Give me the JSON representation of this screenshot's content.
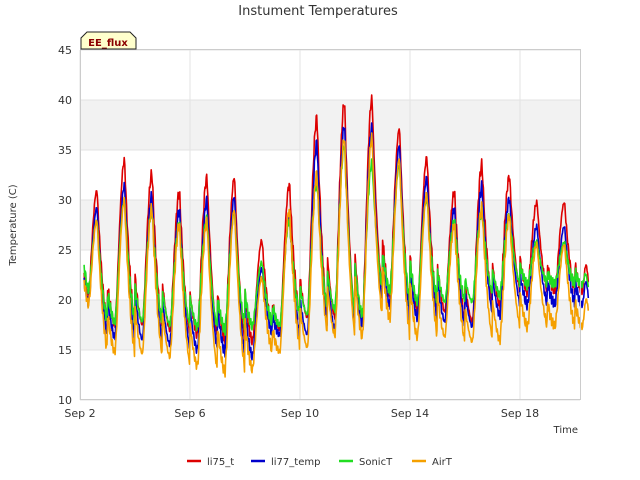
{
  "chart_data": {
    "type": "line",
    "title": "Instument Temperatures",
    "badge": "EE_flux",
    "xlabel": "Time",
    "ylabel": "Temperature (C)",
    "ylim": [
      10,
      45
    ],
    "xlim": [
      "2023-09-02",
      "2023-09-20"
    ],
    "yticks": [
      "10",
      "15",
      "20",
      "25",
      "30",
      "35",
      "40",
      "45"
    ],
    "xticks": [
      {
        "label": "Sep 2",
        "date": "2023-09-02"
      },
      {
        "label": "Sep 6",
        "date": "2023-09-06"
      },
      {
        "label": "Sep 10",
        "date": "2023-09-10"
      },
      {
        "label": "Sep 14",
        "date": "2023-09-14"
      },
      {
        "label": "Sep 18",
        "date": "2023-09-18"
      }
    ],
    "grid": true,
    "background_bands": "alternating light grey",
    "legend_position": "bottom",
    "series": [
      {
        "name": "li75_t",
        "color": "#dd0000",
        "start": "2023-09-02",
        "daily_max": [
          31,
          34,
          32.7,
          30.8,
          32.3,
          32.3,
          26,
          31.6,
          38.3,
          39.8,
          40.2,
          37.2,
          34.3,
          30.8,
          33.6,
          32.4,
          29.8
        ],
        "daily_min": [
          18.5,
          17.5,
          17.5,
          17.0,
          16.5,
          16.0,
          15.8,
          17.0,
          18.2,
          18.3,
          18.0,
          20.5,
          19.0,
          18.8,
          17.8,
          19.5,
          20.8
        ],
        "start_value": 22.5,
        "end_value": 21.0
      },
      {
        "name": "li77_temp",
        "color": "#0000cc",
        "start": "2023-09-02",
        "daily_max": [
          29.3,
          31.5,
          30.5,
          29.0,
          30.1,
          30.4,
          23.2,
          28.5,
          35.8,
          37.5,
          37.4,
          35.5,
          32.3,
          29.1,
          31.4,
          30.2,
          27.4
        ],
        "daily_min": [
          17.5,
          16.3,
          16.0,
          15.5,
          15.0,
          14.8,
          14.3,
          16.5,
          16.5,
          17.0,
          17.5,
          19.5,
          18.2,
          17.8,
          17.3,
          18.5,
          19.5
        ],
        "start_value": 22.0,
        "end_value": 19.5
      },
      {
        "name": "SonicT",
        "color": "#22dd22",
        "start": "2023-09-02",
        "daily_max": [
          28.0,
          30.0,
          29.0,
          27.6,
          28.2,
          28.7,
          23.8,
          28.0,
          32.0,
          35.5,
          33.8,
          33.5,
          30.3,
          27.8,
          29.0,
          28.5,
          25.8
        ],
        "daily_min": [
          19.0,
          17.8,
          17.8,
          17.5,
          17.3,
          17.0,
          17.3,
          17.5,
          18.5,
          19.0,
          18.5,
          21.0,
          19.8,
          19.8,
          19.8,
          20.5,
          21.5
        ],
        "start_value": 23.3,
        "end_value": 20.8
      },
      {
        "name": "AirT",
        "color": "#f5a000",
        "start": "2023-09-02",
        "daily_max": [
          28.0,
          30.0,
          29.3,
          27.6,
          28.0,
          29.1,
          22.3,
          29.0,
          32.7,
          36.2,
          36.4,
          34.2,
          30.7,
          27.5,
          29.3,
          28.5,
          25.6
        ],
        "daily_min": [
          17.5,
          14.8,
          14.6,
          14.3,
          13.4,
          12.8,
          13.0,
          14.8,
          15.2,
          16.5,
          16.3,
          18.2,
          16.3,
          16.3,
          15.8,
          16.0,
          17.3
        ],
        "start_value": 21.8,
        "end_value": 18.3
      }
    ]
  }
}
